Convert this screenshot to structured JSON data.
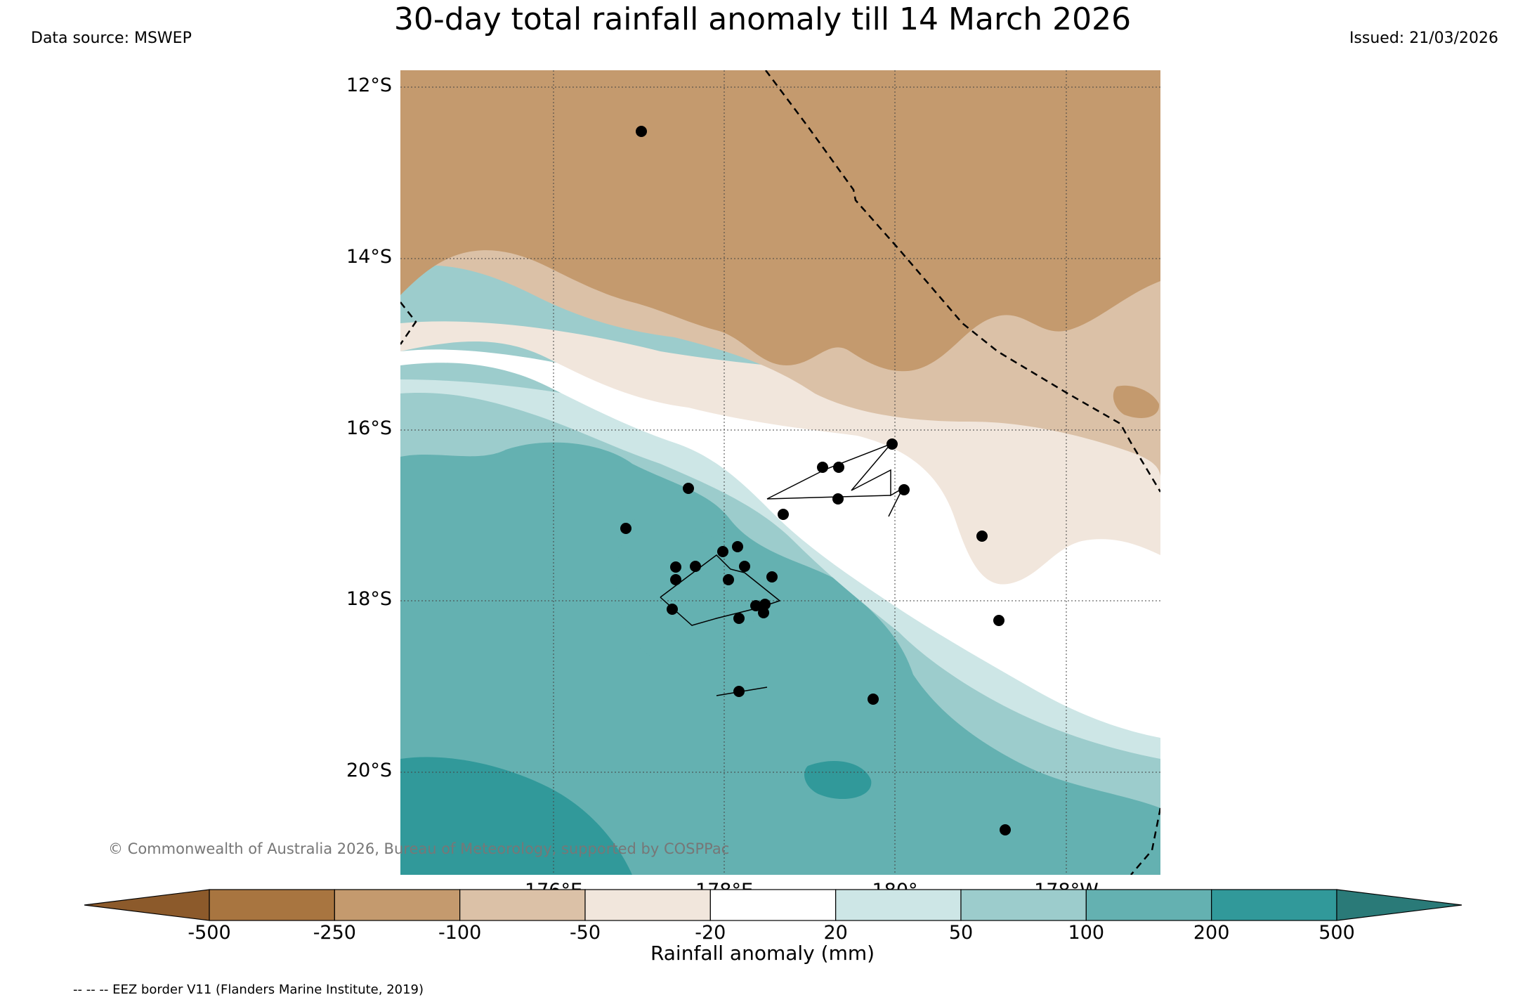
{
  "title": "30-day total rainfall anomaly till 14 March 2026",
  "data_source": "Data source: MSWEP",
  "issued": "Issued: 21/03/2026",
  "copyright": "© Commonwealth of Australia 2026, Bureau of Meteorology, supported by COSPPac",
  "lat_labels": [
    "12°S",
    "14°S",
    "16°S",
    "18°S",
    "20°S"
  ],
  "lon_labels": [
    "176°E",
    "178°E",
    "180°",
    "178°W"
  ],
  "colorbar": {
    "label": "Rainfall anomaly (mm)",
    "ticks": [
      "-500",
      "-250",
      "-100",
      "-50",
      "-20",
      "20",
      "50",
      "100",
      "200",
      "500"
    ],
    "colors": [
      "#8c5a2b",
      "#a87540",
      "#c49a6e",
      "#dbc1a7",
      "#f1e6dc",
      "#ffffff",
      "#cde6e6",
      "#9ccccc",
      "#64b1b1",
      "#31999a",
      "#2a7a78"
    ]
  },
  "eez_note": "-- -- -- EEZ border V11 (Flanders Marine Institute, 2019)"
}
